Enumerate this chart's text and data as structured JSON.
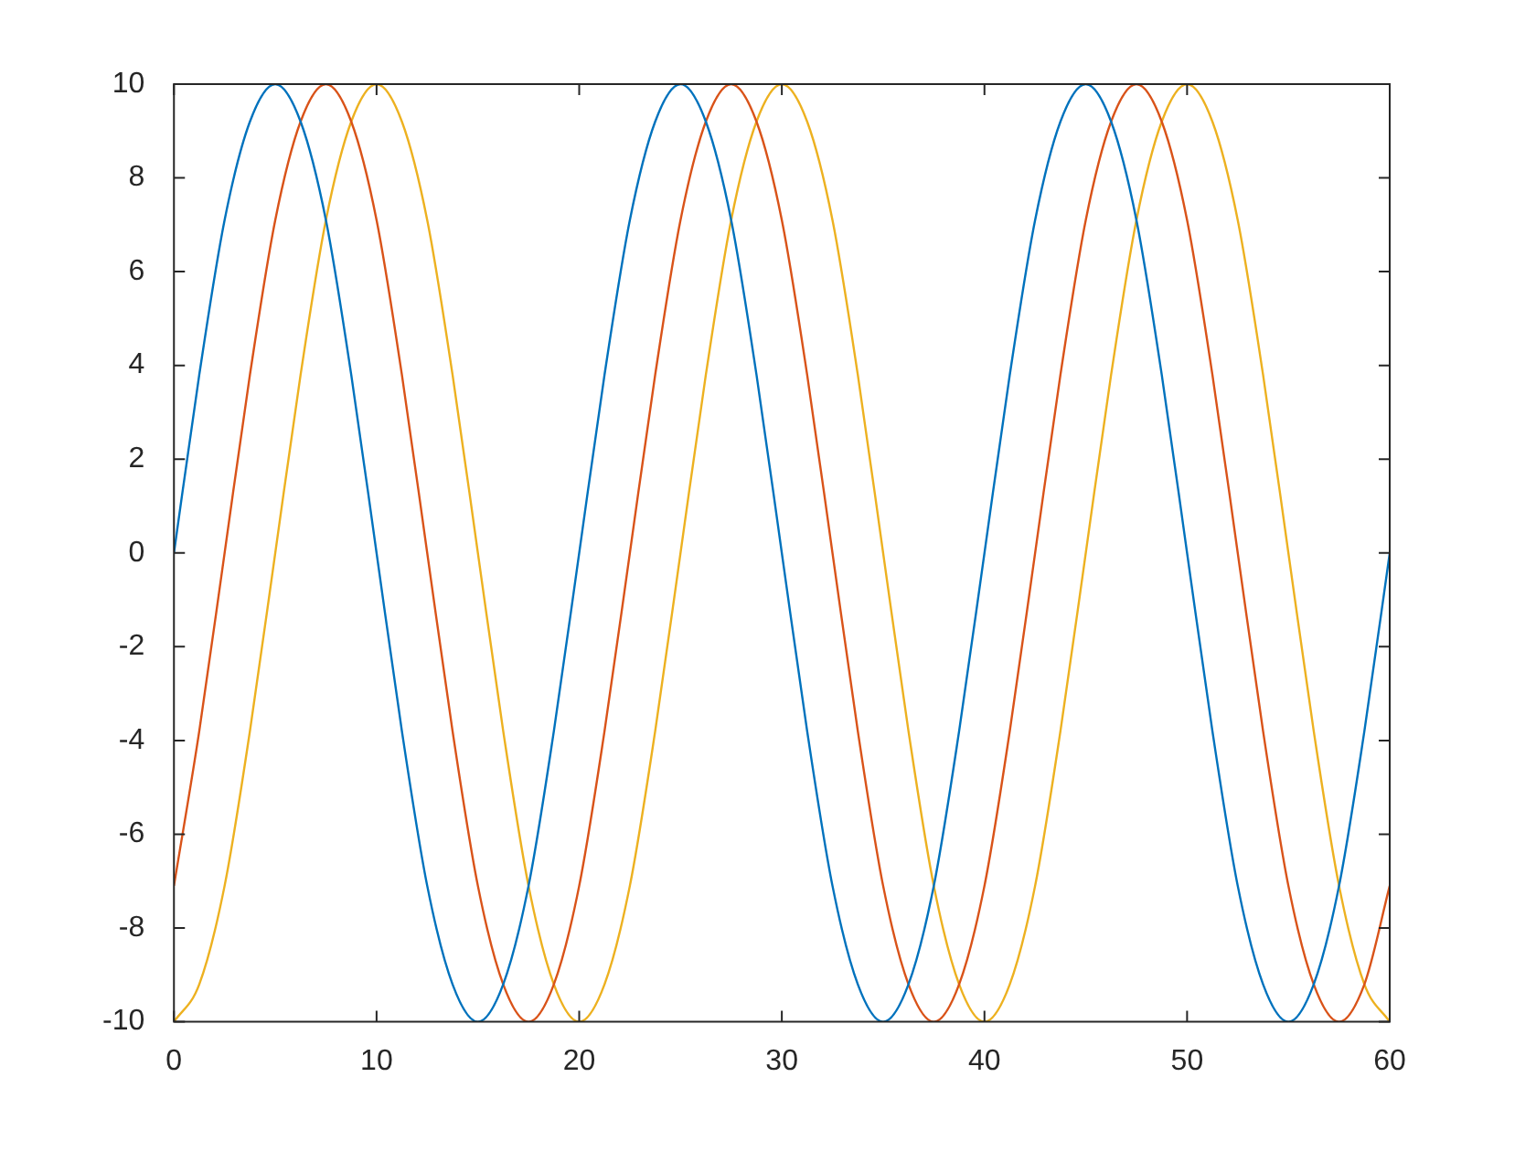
{
  "chart_data": {
    "type": "line",
    "x": [
      0,
      1.25,
      2.5,
      3.75,
      5,
      6.25,
      7.5,
      8.75,
      10,
      11.25,
      12.5,
      13.75,
      15,
      16.25,
      17.5,
      18.75,
      20,
      21.25,
      22.5,
      23.75,
      25,
      26.25,
      27.5,
      28.75,
      30,
      31.25,
      32.5,
      33.75,
      35,
      36.25,
      37.5,
      38.75,
      40,
      41.25,
      42.5,
      43.75,
      45,
      46.25,
      47.5,
      48.75,
      50,
      51.25,
      52.5,
      53.75,
      55,
      56.25,
      57.5,
      58.75,
      60
    ],
    "series": [
      {
        "color": "#0072bd",
        "values": [
          0,
          3.8,
          7.1,
          9.2,
          10,
          9.2,
          7.1,
          3.8,
          0,
          -3.8,
          -7.1,
          -9.2,
          -10,
          -9.2,
          -7.1,
          -3.8,
          0,
          3.8,
          7.1,
          9.2,
          10,
          9.2,
          7.1,
          3.8,
          0,
          -3.8,
          -7.1,
          -9.2,
          -10,
          -9.2,
          -7.1,
          -3.8,
          0,
          3.8,
          7.1,
          9.2,
          10,
          9.2,
          7.1,
          3.8,
          0,
          -3.8,
          -7.1,
          -9.2,
          -10,
          -9.2,
          -7.1,
          -3.8,
          0
        ]
      },
      {
        "color": "#d95319",
        "values": [
          -7.1,
          -3.8,
          0,
          3.8,
          7.1,
          9.2,
          10,
          9.2,
          7.1,
          3.8,
          0,
          -3.8,
          -7.1,
          -9.2,
          -10,
          -9.2,
          -7.1,
          -3.8,
          0,
          3.8,
          7.1,
          9.2,
          10,
          9.2,
          7.1,
          3.8,
          0,
          -3.8,
          -7.1,
          -9.2,
          -10,
          -9.2,
          -7.1,
          -3.8,
          0,
          3.8,
          7.1,
          9.2,
          10,
          9.2,
          7.1,
          3.8,
          0,
          -3.8,
          -7.1,
          -9.2,
          -10,
          -9.2,
          -7.1
        ]
      },
      {
        "color": "#edb120",
        "values": [
          -10,
          -9.2,
          -7.1,
          -3.8,
          0,
          3.8,
          7.1,
          9.2,
          10,
          9.2,
          7.1,
          3.8,
          0,
          -3.8,
          -7.1,
          -9.2,
          -10,
          -9.2,
          -7.1,
          -3.8,
          0,
          3.8,
          7.1,
          9.2,
          10,
          9.2,
          7.1,
          3.8,
          0,
          -3.8,
          -7.1,
          -9.2,
          -10,
          -9.2,
          -7.1,
          -3.8,
          0,
          3.8,
          7.1,
          9.2,
          10,
          9.2,
          7.1,
          3.8,
          0,
          -3.8,
          -7.1,
          -9.2,
          -10
        ]
      }
    ],
    "xlim": [
      0,
      60
    ],
    "xticks": [
      0,
      10,
      20,
      30,
      40,
      50,
      60
    ],
    "ylim": [
      -10,
      10
    ],
    "yticks": [
      -10,
      -8,
      -6,
      -4,
      -2,
      0,
      2,
      4,
      6,
      8,
      10
    ]
  }
}
